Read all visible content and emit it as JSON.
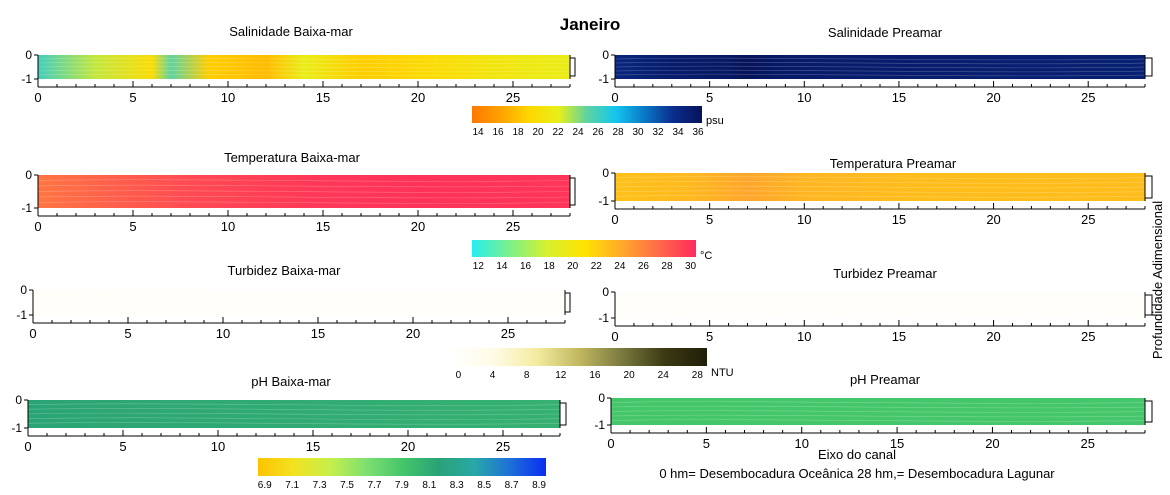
{
  "title": "Janeiro",
  "y_axis_label": "Profundidade Adimensional",
  "footer": {
    "line1": "Eixo do canal",
    "line2": "0 hm= Desembocadura Oceânica  28 hm,= Desembocadura Lagunar"
  },
  "chart_data": [
    {
      "type": "heatmap",
      "title": "Salinidade Baixa-mar",
      "variable": "salinity",
      "tide": "low",
      "xlim": [
        0,
        28
      ],
      "ylim": [
        -1,
        0
      ],
      "xticks": [
        0,
        5,
        10,
        15,
        20,
        25
      ],
      "yticks": [
        0,
        -1
      ],
      "profile_x": [
        0,
        3,
        6,
        7,
        9,
        12,
        14,
        17,
        21,
        24,
        28
      ],
      "profile_values": [
        26,
        23,
        20,
        25,
        19,
        18,
        22,
        19,
        20,
        21,
        22
      ]
    },
    {
      "type": "heatmap",
      "title": "Salinidade Preamar",
      "variable": "salinity",
      "tide": "high",
      "xlim": [
        0,
        28
      ],
      "ylim": [
        -1,
        0
      ],
      "xticks": [
        0,
        5,
        10,
        15,
        20,
        25
      ],
      "yticks": [
        0,
        -1
      ],
      "profile_x": [
        0,
        3,
        6,
        7,
        9,
        14,
        20,
        28
      ],
      "profile_values": [
        34,
        35,
        35.5,
        36,
        35.2,
        35,
        34.8,
        34.6
      ]
    },
    {
      "type": "heatmap",
      "title": "Temperatura Baixa-mar",
      "variable": "temperature",
      "tide": "low",
      "xlim": [
        0,
        28
      ],
      "ylim": [
        -1,
        0
      ],
      "xticks": [
        0,
        5,
        10,
        15,
        20,
        25
      ],
      "yticks": [
        0,
        -1
      ],
      "profile_x": [
        0,
        4,
        8,
        14,
        20,
        28
      ],
      "profile_values": [
        26.5,
        27.5,
        28.5,
        29.3,
        29.6,
        29.5
      ]
    },
    {
      "type": "heatmap",
      "title": "Temperatura Preamar",
      "variable": "temperature",
      "tide": "high",
      "xlim": [
        0,
        28
      ],
      "ylim": [
        -1,
        0
      ],
      "xticks": [
        0,
        5,
        10,
        15,
        20,
        25
      ],
      "yticks": [
        0,
        -1
      ],
      "profile_x": [
        0,
        4,
        7,
        10,
        16,
        22,
        28
      ],
      "profile_values": [
        22.8,
        23.2,
        24.2,
        23.4,
        23,
        23,
        23
      ]
    },
    {
      "type": "heatmap",
      "title": "Turbidez Baixa-mar",
      "variable": "turbidity",
      "tide": "low",
      "xlim": [
        0,
        28
      ],
      "ylim": [
        -1,
        0
      ],
      "xticks": [
        0,
        5,
        10,
        15,
        20,
        25
      ],
      "yticks": [
        0,
        -1
      ],
      "profile_x": [
        0,
        14,
        28
      ],
      "profile_values": [
        1.5,
        1,
        1
      ]
    },
    {
      "type": "heatmap",
      "title": "Turbidez Preamar",
      "variable": "turbidity",
      "tide": "high",
      "xlim": [
        0,
        28
      ],
      "ylim": [
        -1,
        0
      ],
      "xticks": [
        0,
        5,
        10,
        15,
        20,
        25
      ],
      "yticks": [
        0,
        -1
      ],
      "profile_x": [
        0,
        14,
        28
      ],
      "profile_values": [
        0.8,
        0.8,
        0.8
      ]
    },
    {
      "type": "heatmap",
      "title": "pH Baixa-mar",
      "variable": "ph",
      "tide": "low",
      "xlim": [
        0,
        28
      ],
      "ylim": [
        -1,
        0
      ],
      "xticks": [
        0,
        5,
        10,
        15,
        20,
        25
      ],
      "yticks": [
        0,
        -1
      ],
      "profile_x": [
        0,
        14,
        28
      ],
      "profile_values": [
        8.2,
        8.15,
        8.1
      ]
    },
    {
      "type": "heatmap",
      "title": "pH Preamar",
      "variable": "ph",
      "tide": "high",
      "xlim": [
        0,
        28
      ],
      "ylim": [
        -1,
        0
      ],
      "xticks": [
        0,
        5,
        10,
        15,
        20,
        25
      ],
      "yticks": [
        0,
        -1
      ],
      "profile_x": [
        0,
        14,
        28
      ],
      "profile_values": [
        7.95,
        7.95,
        7.95
      ]
    }
  ],
  "colorbars": [
    {
      "variable": "salinity",
      "unit": "psu",
      "range": [
        14,
        36
      ],
      "ticks": [
        "14",
        "16",
        "18",
        "20",
        "22",
        "24",
        "26",
        "28",
        "30",
        "32",
        "34",
        "36"
      ],
      "colors": [
        "#ff7800",
        "#ffa200",
        "#ffd800",
        "#e8ef1a",
        "#5fd3a0",
        "#12c6f0",
        "#0a78c6",
        "#0a2d8c",
        "#06135a"
      ]
    },
    {
      "variable": "temperature",
      "unit": "°C",
      "range": [
        12,
        30
      ],
      "ticks": [
        "12",
        "14",
        "16",
        "18",
        "20",
        "22",
        "24",
        "26",
        "28",
        "30"
      ],
      "colors": [
        "#26eef2",
        "#7af08a",
        "#d6f030",
        "#ffe400",
        "#ffaa2a",
        "#ff6a48",
        "#ff2a5c"
      ]
    },
    {
      "variable": "turbidity",
      "unit": "NTU",
      "range": [
        0,
        30
      ],
      "ticks": [
        "0",
        "4",
        "8",
        "12",
        "16",
        "20",
        "24",
        "28"
      ],
      "colors": [
        "#ffffff",
        "#fffbe6",
        "#f4eca0",
        "#c2b860",
        "#7a7a40",
        "#3c3a14",
        "#201e08"
      ]
    },
    {
      "variable": "ph",
      "unit": "",
      "range": [
        6.9,
        9.0
      ],
      "ticks": [
        "6.9",
        "7.1",
        "7.3",
        "7.5",
        "7.7",
        "7.9",
        "8.1",
        "8.3",
        "8.5",
        "8.7",
        "8.9"
      ],
      "colors": [
        "#ffc300",
        "#f2e220",
        "#c6ef4a",
        "#7ee070",
        "#46c66a",
        "#2aa276",
        "#28a8a6",
        "#1e70d8",
        "#0a2ef0"
      ]
    }
  ]
}
